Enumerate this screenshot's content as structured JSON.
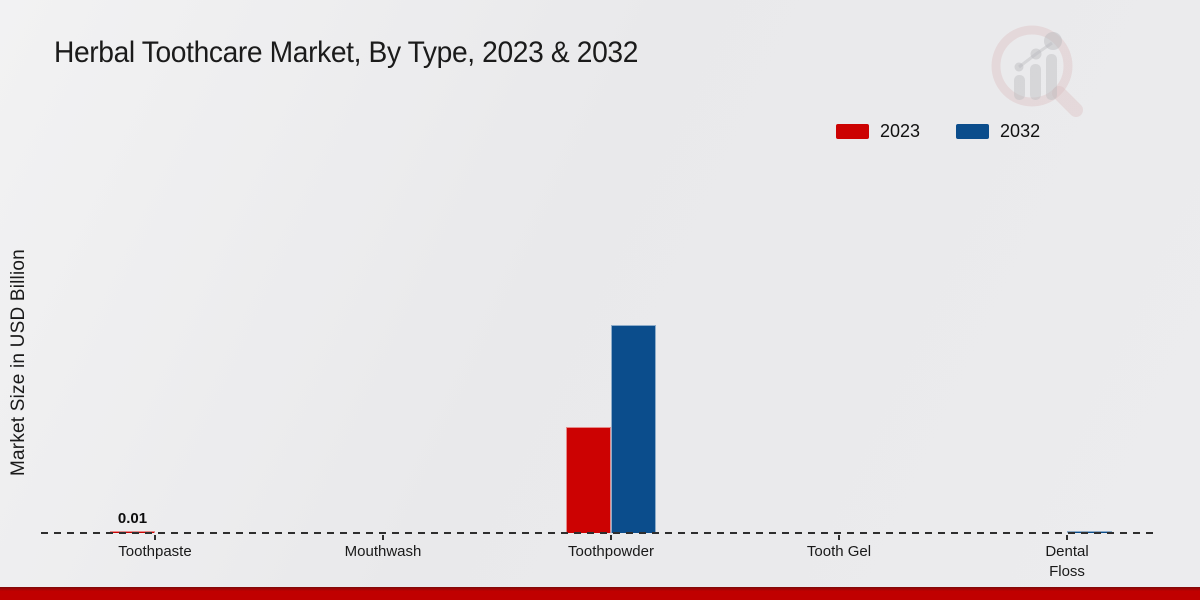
{
  "title": "Herbal Toothcare Market, By Type, 2023 & 2032",
  "watermark_icon": "magnifying-glass-bar-chart-logo",
  "footer_color": "#c00000",
  "text_color": "#1a1a1a",
  "chart_data": {
    "type": "bar",
    "title": "Herbal Toothcare Market, By Type, 2023 & 2032",
    "xlabel": "",
    "ylabel": "Market Size in USD Billion",
    "categories": [
      "Toothpaste",
      "Mouthwash",
      "Toothpowder",
      "Tooth Gel",
      "Dental\nFloss"
    ],
    "series": [
      {
        "name": "2023",
        "color": "#cc0202",
        "values": [
          0.01,
          0,
          0.51,
          0,
          0
        ]
      },
      {
        "name": "2032",
        "color": "#0b4d8c",
        "values": [
          0,
          0,
          1.0,
          0,
          0.01
        ]
      }
    ],
    "ylim": [
      0,
      1.8
    ],
    "grid": false,
    "legend_position": "top-right",
    "axis_style": "dashed-baseline-only",
    "data_labels": [
      {
        "series": 0,
        "category": 0,
        "text": "0.01"
      }
    ]
  }
}
